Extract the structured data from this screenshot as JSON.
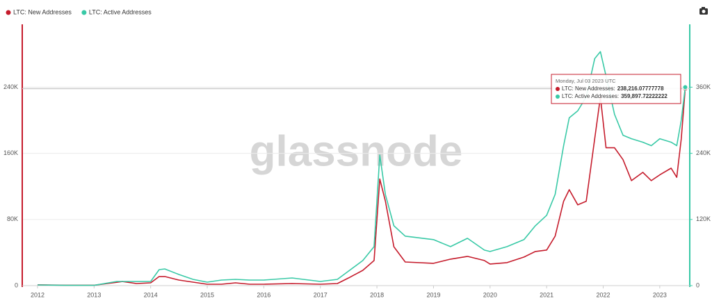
{
  "chart_data": {
    "type": "line",
    "watermark": "glassnode",
    "x": [
      2012.0,
      2012.5,
      2013.0,
      2013.4,
      2013.5,
      2013.75,
      2014.0,
      2014.15,
      2014.25,
      2014.5,
      2014.75,
      2015.0,
      2015.25,
      2015.5,
      2015.75,
      2016.0,
      2016.5,
      2017.0,
      2017.3,
      2017.5,
      2017.75,
      2017.95,
      2018.05,
      2018.15,
      2018.3,
      2018.5,
      2019.0,
      2019.3,
      2019.6,
      2019.9,
      2020.0,
      2020.3,
      2020.6,
      2020.8,
      2021.0,
      2021.15,
      2021.3,
      2021.4,
      2021.55,
      2021.7,
      2021.85,
      2021.95,
      2022.05,
      2022.2,
      2022.35,
      2022.5,
      2022.7,
      2022.85,
      2023.0,
      2023.2,
      2023.3,
      2023.38,
      2023.45
    ],
    "series": [
      {
        "name": "LTC: New Addresses",
        "color": "#c51b2b",
        "axis": "y",
        "values": [
          1000,
          500,
          500,
          4000,
          5000,
          2500,
          3400,
          11000,
          11000,
          6700,
          4200,
          1700,
          1700,
          3400,
          1700,
          1700,
          2500,
          1700,
          2500,
          9300,
          18500,
          30300,
          129000,
          102000,
          47000,
          28600,
          27000,
          32000,
          35400,
          30300,
          26100,
          27800,
          34500,
          41300,
          43000,
          59800,
          102000,
          116000,
          97700,
          102000,
          177600,
          228000,
          166700,
          166700,
          152400,
          127000,
          137000,
          127000,
          134000,
          142000,
          131000,
          177600,
          238216.07777778
        ]
      },
      {
        "name": "LTC: Active Addresses",
        "color": "#38c9a6",
        "axis": "y2",
        "values": [
          1300,
          500,
          500,
          7600,
          7600,
          7600,
          7600,
          29000,
          30300,
          20200,
          11400,
          6300,
          10100,
          11400,
          10100,
          10100,
          13900,
          7600,
          11400,
          26500,
          45500,
          70700,
          237000,
          165000,
          108600,
          89700,
          83400,
          70700,
          85900,
          64400,
          61900,
          70700,
          83400,
          108600,
          127600,
          165500,
          253900,
          304400,
          317000,
          342300,
          411700,
          424400,
          380200,
          310700,
          272800,
          266500,
          260200,
          253900,
          266500,
          260200,
          253900,
          300000,
          359897.72222222
        ]
      }
    ],
    "xlim": [
      2011.73,
      2023.53
    ],
    "xticks": [
      2012,
      2013,
      2014,
      2015,
      2016,
      2017,
      2018,
      2019,
      2020,
      2021,
      2022,
      2023
    ],
    "ylim": [
      0,
      316000
    ],
    "yticks": [
      0,
      {
        "value": 80000,
        "label": "80K"
      },
      {
        "value": 160000,
        "label": "160K"
      },
      {
        "value": 240000,
        "label": "240K"
      }
    ],
    "y2lim": [
      0,
      474000
    ],
    "y2ticks": [
      0,
      {
        "value": 120000,
        "label": "120K"
      },
      {
        "value": 240000,
        "label": "240K"
      },
      {
        "value": 360000,
        "label": "360K"
      }
    ],
    "grid": true,
    "tooltip": {
      "title": "Monday, Jul 03 2023 UTC",
      "items": [
        {
          "label": "LTC: New Addresses:",
          "value": "238,216.07777778"
        },
        {
          "label": "LTC: Active Addresses:",
          "value": "359,897.72222222"
        }
      ]
    }
  }
}
